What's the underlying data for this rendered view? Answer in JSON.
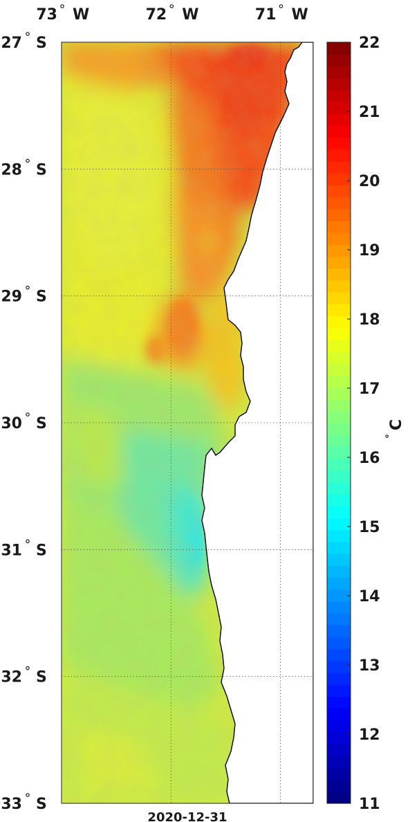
{
  "map": {
    "lon_labels": [
      {
        "deg": "73",
        "hemi": "W",
        "lon": -73
      },
      {
        "deg": "72",
        "hemi": "W",
        "lon": -72
      },
      {
        "deg": "71",
        "hemi": "W",
        "lon": -71
      }
    ],
    "lat_labels": [
      {
        "deg": "27",
        "hemi": "S",
        "lat": -27
      },
      {
        "deg": "28",
        "hemi": "S",
        "lat": -28
      },
      {
        "deg": "29",
        "hemi": "S",
        "lat": -29
      },
      {
        "deg": "30",
        "hemi": "S",
        "lat": -30
      },
      {
        "deg": "31",
        "hemi": "S",
        "lat": -31
      },
      {
        "deg": "32",
        "hemi": "S",
        "lat": -32
      },
      {
        "deg": "33",
        "hemi": "S",
        "lat": -33
      }
    ],
    "lon_range": [
      -73.0,
      -70.7
    ],
    "lat_range": [
      -33.0,
      -27.0
    ],
    "date": "2020-12-31",
    "grid": "dotted",
    "land_color": "#ffffff",
    "coastline_color": "#000000"
  },
  "colorbar": {
    "ticks": [
      "22",
      "21",
      "20",
      "19",
      "18",
      "17",
      "16",
      "15",
      "14",
      "13",
      "12",
      "11"
    ],
    "min": 11,
    "max": 22,
    "unit_degree": "°",
    "unit_letter": "C",
    "colormap": "jet"
  }
}
